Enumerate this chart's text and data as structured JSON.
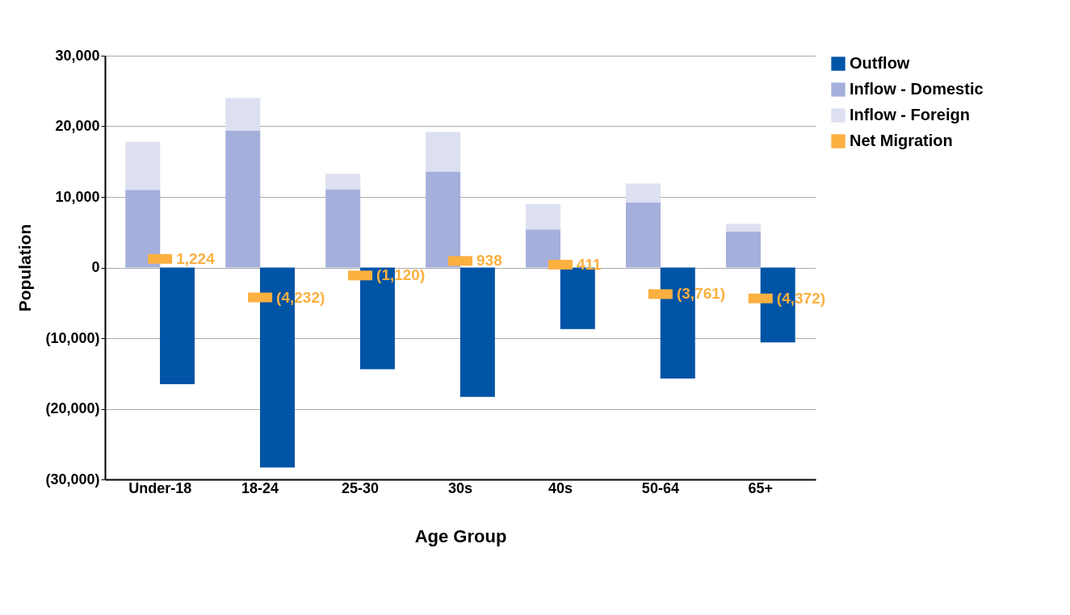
{
  "chart_data": {
    "type": "bar",
    "stacked": true,
    "xlabel": "Age Group",
    "ylabel": "Population",
    "categories": [
      "Under-18",
      "18-24",
      "25-30",
      "30s",
      "40s",
      "50-64",
      "65+"
    ],
    "series": [
      {
        "name": "Outflow",
        "color": "#0054a6",
        "values": [
          -16500,
          -28300,
          -14400,
          -18300,
          -8700,
          -15700,
          -10600
        ]
      },
      {
        "name": "Inflow - Domestic",
        "color": "#a4afdb",
        "values": [
          11000,
          19400,
          11100,
          13600,
          5400,
          9200,
          5100
        ]
      },
      {
        "name": "Inflow - Foreign",
        "color": "#dde0f1",
        "values": [
          6800,
          4600,
          2200,
          5600,
          3600,
          2700,
          1100
        ]
      },
      {
        "name": "Net Migration",
        "type": "scatter",
        "color": "#fbb040",
        "values": [
          1224,
          -4232,
          -1120,
          938,
          411,
          -3761,
          -4372
        ],
        "value_labels": [
          "1,224",
          "(4,232)",
          "(1,120)",
          "938",
          "411",
          "(3,761)",
          "(4,372)"
        ]
      }
    ],
    "ylim": [
      -30000,
      30000
    ],
    "yticks": [
      {
        "value": -30000,
        "label": "(30,000)"
      },
      {
        "value": -20000,
        "label": "(20,000)"
      },
      {
        "value": -10000,
        "label": "(10,000)"
      },
      0,
      {
        "value": 10000,
        "label": "10,000"
      },
      {
        "value": 20000,
        "label": "20,000"
      },
      {
        "value": 30000,
        "label": "30,000"
      }
    ],
    "grid": "y",
    "legend": "top right"
  }
}
